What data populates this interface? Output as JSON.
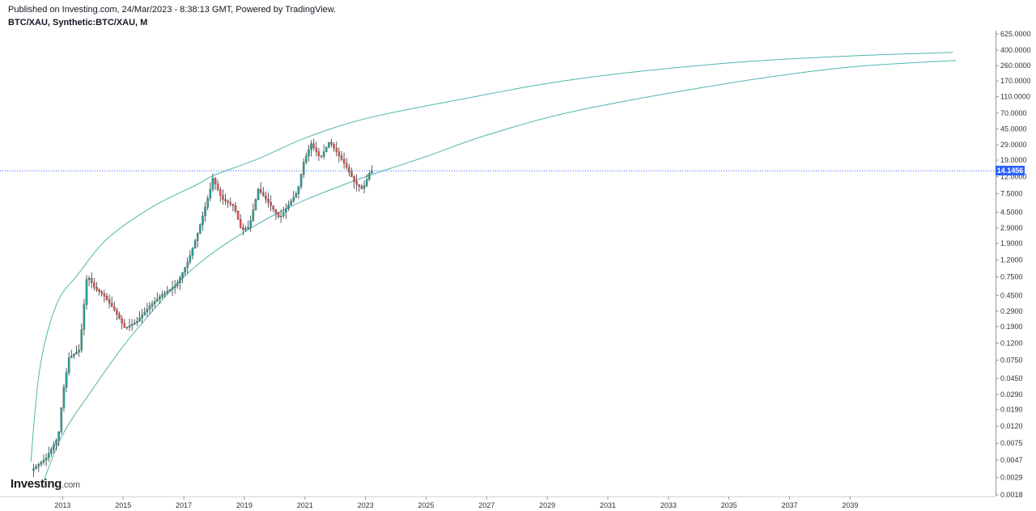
{
  "header": {
    "published": "Published on Investing.com, 24/Mar/2023 - 8:38:13 GMT, Powered by TradingView.",
    "symbol": "BTC/XAU, Synthetic:BTC/XAU, M"
  },
  "logo": {
    "main": "Investing",
    "suffix": ".com"
  },
  "colors": {
    "up": "#26a69a",
    "down": "#ef5350",
    "wick": "#333333",
    "arc": "#4fb6ad",
    "price_line": "#2962ff",
    "axis": "#9598a1"
  },
  "chart_data": {
    "type": "candlestick",
    "scale": "log",
    "title": "BTC/XAU, Synthetic:BTC/XAU, M",
    "xlabel": "",
    "ylabel": "",
    "xlim": [
      2011.2,
      2043.8
    ],
    "ylim": [
      0.0018,
      625
    ],
    "y_ticks": [
      "625.0000",
      "400.0000",
      "260.0000",
      "170.0000",
      "110.0000",
      "70.0000",
      "45.0000",
      "29.0000",
      "19.0000",
      "12.0000",
      "7.5000",
      "4.5000",
      "2.9000",
      "1.9000",
      "1.2000",
      "0.7500",
      "0.4500",
      "0.2900",
      "0.1900",
      "0.1200",
      "0.0750",
      "0.0450",
      "0.0290",
      "0.0190",
      "0.0120",
      "0.0075",
      "0.0047",
      "0.0029",
      "0.0018"
    ],
    "x_ticks": [
      "2013",
      "2015",
      "2017",
      "2019",
      "2021",
      "2023",
      "2025",
      "2027",
      "2029",
      "2031",
      "2033",
      "2035",
      "2037",
      "2039"
    ],
    "last_price": "14.1456",
    "last_value": 14.1456,
    "anchors": [
      [
        2012.0,
        0.0035
      ],
      [
        2012.5,
        0.005
      ],
      [
        2012.9,
        0.009
      ],
      [
        2013.05,
        0.03
      ],
      [
        2013.25,
        0.08
      ],
      [
        2013.6,
        0.1
      ],
      [
        2013.85,
        0.8
      ],
      [
        2014.1,
        0.55
      ],
      [
        2014.4,
        0.45
      ],
      [
        2014.8,
        0.28
      ],
      [
        2015.1,
        0.18
      ],
      [
        2015.5,
        0.22
      ],
      [
        2015.9,
        0.33
      ],
      [
        2016.3,
        0.45
      ],
      [
        2016.8,
        0.6
      ],
      [
        2017.2,
        1.2
      ],
      [
        2017.5,
        2.5
      ],
      [
        2017.9,
        8.0
      ],
      [
        2018.0,
        11.5
      ],
      [
        2018.3,
        6.5
      ],
      [
        2018.7,
        5.3
      ],
      [
        2018.95,
        2.7
      ],
      [
        2019.2,
        3.0
      ],
      [
        2019.5,
        8.5
      ],
      [
        2019.9,
        5.5
      ],
      [
        2020.2,
        3.8
      ],
      [
        2020.5,
        5.5
      ],
      [
        2020.8,
        8.0
      ],
      [
        2021.0,
        18.0
      ],
      [
        2021.25,
        30.0
      ],
      [
        2021.55,
        20.0
      ],
      [
        2021.85,
        32.0
      ],
      [
        2022.15,
        22.0
      ],
      [
        2022.4,
        16.0
      ],
      [
        2022.7,
        10.0
      ],
      [
        2022.95,
        8.5
      ],
      [
        2023.2,
        14.1456
      ]
    ],
    "arcs": [
      {
        "name": "",
        "points": [
          [
            2011.95,
            0.0045
          ],
          [
            2012.25,
            0.06
          ],
          [
            2012.8,
            0.35
          ],
          [
            2013.5,
            0.8
          ],
          [
            2014.5,
            2.2
          ],
          [
            2016.0,
            5.3
          ],
          [
            2017.4,
            9.5
          ],
          [
            2018.0,
            12.5
          ],
          [
            2019.5,
            20
          ],
          [
            2021.0,
            35
          ],
          [
            2023.0,
            60
          ],
          [
            2026.0,
            100
          ],
          [
            2030.0,
            180
          ],
          [
            2035.0,
            280
          ],
          [
            2039.0,
            340
          ],
          [
            2042.4,
            375
          ]
        ]
      },
      {
        "name": "",
        "points": [
          [
            2012.35,
            0.0025
          ],
          [
            2013.0,
            0.0095
          ],
          [
            2014.0,
            0.034
          ],
          [
            2015.0,
            0.11
          ],
          [
            2016.0,
            0.3
          ],
          [
            2017.0,
            0.75
          ],
          [
            2018.0,
            1.5
          ],
          [
            2019.0,
            2.6
          ],
          [
            2020.0,
            4.2
          ],
          [
            2021.0,
            6.3
          ],
          [
            2022.0,
            8.8
          ],
          [
            2023.0,
            12.0
          ],
          [
            2025.0,
            21
          ],
          [
            2027.0,
            38
          ],
          [
            2030.0,
            75
          ],
          [
            2035.0,
            160
          ],
          [
            2039.0,
            250
          ],
          [
            2042.5,
            300
          ]
        ]
      }
    ]
  }
}
